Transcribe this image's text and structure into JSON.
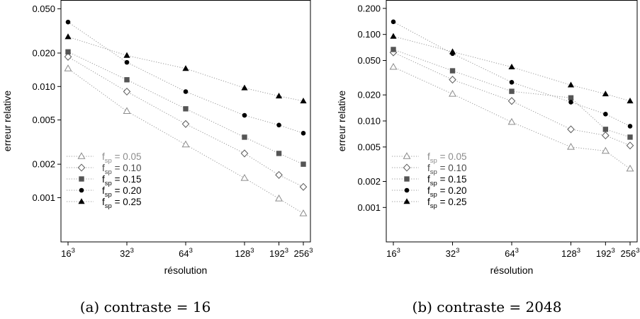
{
  "chart_data": [
    {
      "type": "scatter",
      "caption": "(a) contraste = 16",
      "xlabel": "résolution",
      "ylabel": "erreur relative",
      "x": [
        16,
        32,
        64,
        128,
        192,
        256
      ],
      "x_tick_base": [
        "16",
        "32",
        "64",
        "128",
        "192",
        "256"
      ],
      "x_tick_exp": "3",
      "yscale": "log",
      "ylim": [
        0.0004,
        0.06
      ],
      "yticks": [
        0.001,
        0.002,
        0.005,
        0.01,
        0.02,
        0.05
      ],
      "ytick_labels": [
        "0.001",
        "0.002",
        "0.005",
        "0.010",
        "0.020",
        "0.050"
      ],
      "legend_position": "bottom-left",
      "series": [
        {
          "label_base": "f",
          "label_sub": "sp",
          "label_value": " = 0.05",
          "marker": "open-triangle",
          "color": "#8c8c8c",
          "values": [
            0.0145,
            0.006,
            0.003,
            0.0015,
            0.00098,
            0.00072
          ]
        },
        {
          "label_base": "f",
          "label_sub": "sp",
          "label_value": " = 0.10",
          "marker": "open-diamond",
          "color": "#5a5a5a",
          "values": [
            0.0185,
            0.009,
            0.0046,
            0.0025,
            0.0016,
            0.00125
          ]
        },
        {
          "label_base": "f",
          "label_sub": "sp",
          "label_value": " = 0.15",
          "marker": "square",
          "color": "#555555",
          "values": [
            0.0205,
            0.0115,
            0.0063,
            0.0035,
            0.0025,
            0.002
          ]
        },
        {
          "label_base": "f",
          "label_sub": "sp",
          "label_value": " = 0.20",
          "marker": "circle",
          "color": "#000000",
          "values": [
            0.038,
            0.0165,
            0.009,
            0.0055,
            0.0045,
            0.0038
          ]
        },
        {
          "label_base": "f",
          "label_sub": "sp",
          "label_value": " = 0.25",
          "marker": "triangle",
          "color": "#000000",
          "values": [
            0.028,
            0.019,
            0.0145,
            0.0097,
            0.0082,
            0.0074
          ]
        }
      ]
    },
    {
      "type": "scatter",
      "caption": "(b) contraste = 2048",
      "xlabel": "résolution",
      "ylabel": "erreur relative",
      "x": [
        16,
        32,
        64,
        128,
        192,
        256
      ],
      "x_tick_base": [
        "16",
        "32",
        "64",
        "128",
        "192",
        "256"
      ],
      "x_tick_exp": "3",
      "yscale": "log",
      "ylim": [
        0.0004,
        0.25
      ],
      "yticks": [
        0.001,
        0.002,
        0.005,
        0.01,
        0.02,
        0.05,
        0.1,
        0.2
      ],
      "ytick_labels": [
        "0.001",
        "0.002",
        "0.005",
        "0.010",
        "0.020",
        "0.050",
        "0.100",
        "0.200"
      ],
      "legend_position": "bottom-left",
      "series": [
        {
          "label_base": "f",
          "label_sub": "sp",
          "label_value": " = 0.05",
          "marker": "open-triangle",
          "color": "#8c8c8c",
          "values": [
            0.042,
            0.0205,
            0.0097,
            0.005,
            0.0045,
            0.0028
          ]
        },
        {
          "label_base": "f",
          "label_sub": "sp",
          "label_value": " = 0.10",
          "marker": "open-diamond",
          "color": "#5a5a5a",
          "values": [
            0.062,
            0.03,
            0.017,
            0.008,
            0.0068,
            0.0052
          ]
        },
        {
          "label_base": "f",
          "label_sub": "sp",
          "label_value": " = 0.15",
          "marker": "square",
          "color": "#555555",
          "values": [
            0.067,
            0.038,
            0.022,
            0.0185,
            0.008,
            0.0065
          ]
        },
        {
          "label_base": "f",
          "label_sub": "sp",
          "label_value": " = 0.20",
          "marker": "circle",
          "color": "#000000",
          "values": [
            0.14,
            0.06,
            0.028,
            0.0165,
            0.012,
            0.0087
          ]
        },
        {
          "label_base": "f",
          "label_sub": "sp",
          "label_value": " = 0.25",
          "marker": "triangle",
          "color": "#000000",
          "values": [
            0.095,
            0.063,
            0.042,
            0.026,
            0.0205,
            0.017
          ]
        }
      ]
    }
  ]
}
